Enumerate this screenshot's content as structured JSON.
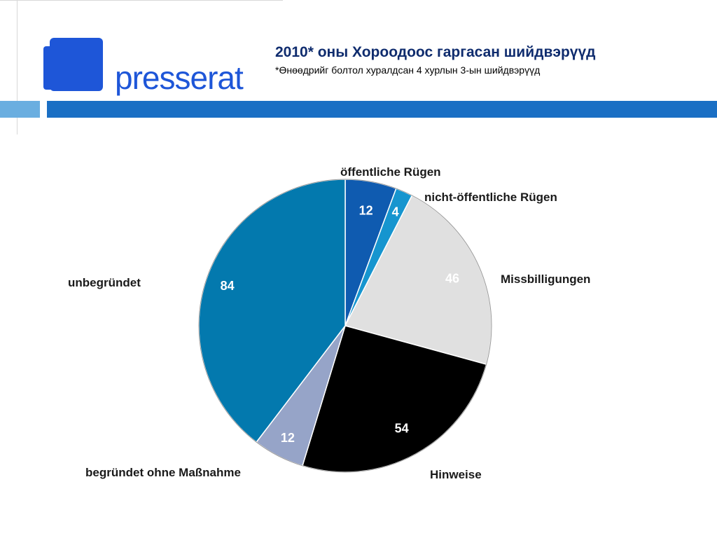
{
  "header": {
    "logo_text": "presserat",
    "title": "2010* оны Хороодоос гаргасан шийдвэрүүд",
    "subtitle": "*Өнөөдрийг болтол хуралдсан 4 хурлын 3-ын шийдвэрүүд"
  },
  "colors": {
    "brand_blue": "#1e56d8",
    "bar_light": "#6aaee0",
    "bar_dark": "#1a6fc4"
  },
  "chart_data": {
    "type": "pie",
    "start": "12 o'clock",
    "direction": "clockwise",
    "slices": [
      {
        "label": "öffentliche Rügen",
        "value": 12,
        "color": "#0f5bb0",
        "value_color": "#ffffff"
      },
      {
        "label": "nicht-öffentliche Rügen",
        "value": 4,
        "color": "#1695cf",
        "value_color": "#ffffff"
      },
      {
        "label": "Missbilligungen",
        "value": 46,
        "color": "#e0e0e0",
        "value_color": "#ffffff"
      },
      {
        "label": "Hinweise",
        "value": 54,
        "color": "#000000",
        "value_color": "#ffffff"
      },
      {
        "label": "begründet ohne Maßnahme",
        "value": 12,
        "color": "#96a4c8",
        "value_color": "#ffffff"
      },
      {
        "label": "unbegründet",
        "value": 84,
        "color": "#0379ae",
        "value_color": "#ffffff"
      }
    ]
  }
}
